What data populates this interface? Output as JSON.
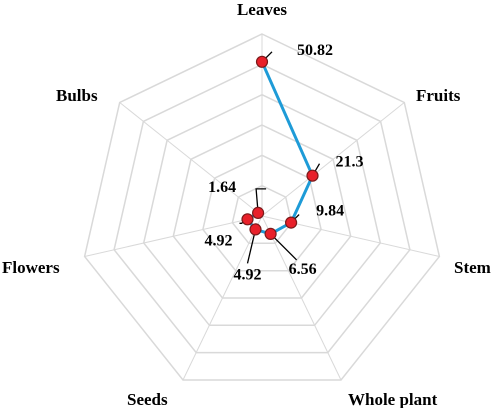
{
  "chart_data": {
    "type": "radar",
    "categories": [
      "Leaves",
      "Fruits",
      "Stem",
      "Whole plant",
      "Seeds",
      "Flowers",
      "Bulbs"
    ],
    "values": [
      50.82,
      21.3,
      9.84,
      6.56,
      4.92,
      4.92,
      1.64
    ],
    "value_labels": [
      "50.82",
      "21.3",
      "9.84",
      "6.56",
      "4.92",
      "4.92",
      "1.64"
    ],
    "rlim": [
      0,
      60
    ],
    "grid_rings": 6,
    "grid": true,
    "colors": {
      "line": "#1e9bd7",
      "marker": "#e8202a",
      "marker_edge": "#7a1a1a",
      "grid": "#d9d9d9"
    }
  }
}
